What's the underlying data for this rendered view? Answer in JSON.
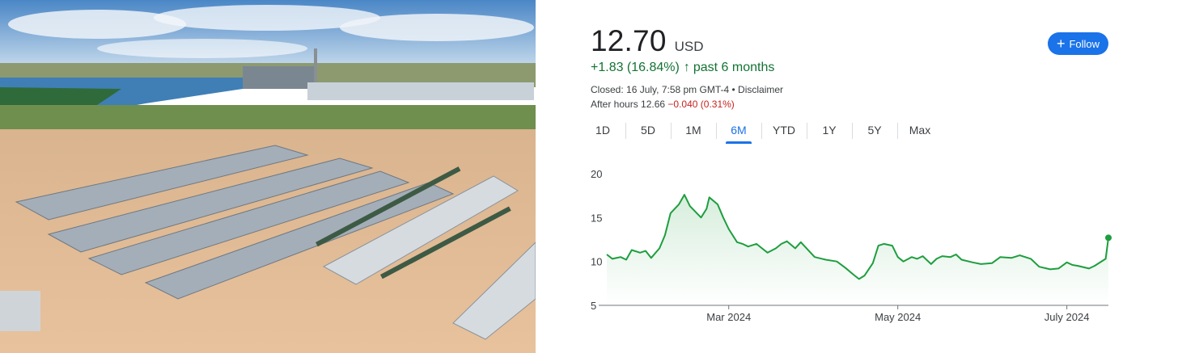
{
  "quote": {
    "price": "12.70",
    "currency": "USD",
    "change": "+1.83 (16.84%)",
    "change_arrow": "↑",
    "change_period": "past 6 months",
    "closed_text": "Closed: 16 July, 7:58 pm GMT-4 • Disclaimer",
    "after_hours_label": "After hours 12.66",
    "after_hours_change": "−0.040 (0.31%)",
    "positive_color": "#137333",
    "negative_color": "#c5221f"
  },
  "follow_button": {
    "label": "Follow",
    "icon": "plus-icon",
    "color": "#1a73e8"
  },
  "tabs": [
    {
      "label": "1D",
      "active": false
    },
    {
      "label": "5D",
      "active": false
    },
    {
      "label": "1M",
      "active": false
    },
    {
      "label": "6M",
      "active": true
    },
    {
      "label": "YTD",
      "active": false
    },
    {
      "label": "1Y",
      "active": false
    },
    {
      "label": "5Y",
      "active": false
    },
    {
      "label": "Max",
      "active": false
    }
  ],
  "photo": {
    "subject": "aerial-data-center-campus"
  },
  "chart_data": {
    "type": "line",
    "title": "",
    "xlabel": "",
    "ylabel": "",
    "ylim": [
      5,
      20
    ],
    "yticks": [
      "20",
      "15",
      "10",
      "5"
    ],
    "xticks": [
      {
        "label": "Mar 2024",
        "x": "2024-03-01"
      },
      {
        "label": "May 2024",
        "x": "2024-05-01"
      },
      {
        "label": "July 2024",
        "x": "2024-07-01"
      }
    ],
    "xlim": [
      "2024-01-17",
      "2024-07-16"
    ],
    "line_color": "#1e9e3e",
    "grid": false,
    "series": [
      {
        "x": [
          "2024-01-17",
          "2024-01-19",
          "2024-01-22",
          "2024-01-24",
          "2024-01-26",
          "2024-01-29",
          "2024-01-31",
          "2024-02-02",
          "2024-02-05",
          "2024-02-07",
          "2024-02-09",
          "2024-02-12",
          "2024-02-14",
          "2024-02-16",
          "2024-02-20",
          "2024-02-22",
          "2024-02-23",
          "2024-02-26",
          "2024-02-28",
          "2024-03-01",
          "2024-03-04",
          "2024-03-06",
          "2024-03-08",
          "2024-03-11",
          "2024-03-13",
          "2024-03-15",
          "2024-03-18",
          "2024-03-20",
          "2024-03-22",
          "2024-03-25",
          "2024-03-27",
          "2024-04-01",
          "2024-04-05",
          "2024-04-09",
          "2024-04-12",
          "2024-04-15",
          "2024-04-17",
          "2024-04-19",
          "2024-04-22",
          "2024-04-24",
          "2024-04-26",
          "2024-04-29",
          "2024-05-01",
          "2024-05-03",
          "2024-05-06",
          "2024-05-08",
          "2024-05-10",
          "2024-05-13",
          "2024-05-15",
          "2024-05-17",
          "2024-05-20",
          "2024-05-22",
          "2024-05-24",
          "2024-05-28",
          "2024-05-31",
          "2024-06-04",
          "2024-06-07",
          "2024-06-11",
          "2024-06-14",
          "2024-06-18",
          "2024-06-21",
          "2024-06-25",
          "2024-06-28",
          "2024-07-01",
          "2024-07-03",
          "2024-07-05",
          "2024-07-09",
          "2024-07-11",
          "2024-07-15",
          "2024-07-16"
        ],
        "values": [
          10.8,
          10.3,
          10.5,
          10.2,
          11.3,
          11.0,
          11.2,
          10.4,
          11.5,
          13.0,
          15.5,
          16.5,
          17.6,
          16.3,
          15.0,
          16.0,
          17.3,
          16.5,
          15.0,
          13.7,
          12.2,
          12.0,
          11.7,
          12.0,
          11.5,
          11.0,
          11.5,
          12.0,
          12.3,
          11.5,
          12.2,
          10.5,
          10.2,
          10.0,
          9.3,
          8.5,
          8.0,
          8.4,
          9.8,
          11.8,
          12.0,
          11.8,
          10.5,
          10.0,
          10.5,
          10.3,
          10.6,
          9.7,
          10.3,
          10.6,
          10.5,
          10.8,
          10.2,
          9.9,
          9.7,
          9.8,
          10.5,
          10.4,
          10.7,
          10.3,
          9.4,
          9.1,
          9.2,
          9.9,
          9.6,
          9.5,
          9.2,
          9.5,
          10.3,
          12.7
        ]
      }
    ]
  }
}
